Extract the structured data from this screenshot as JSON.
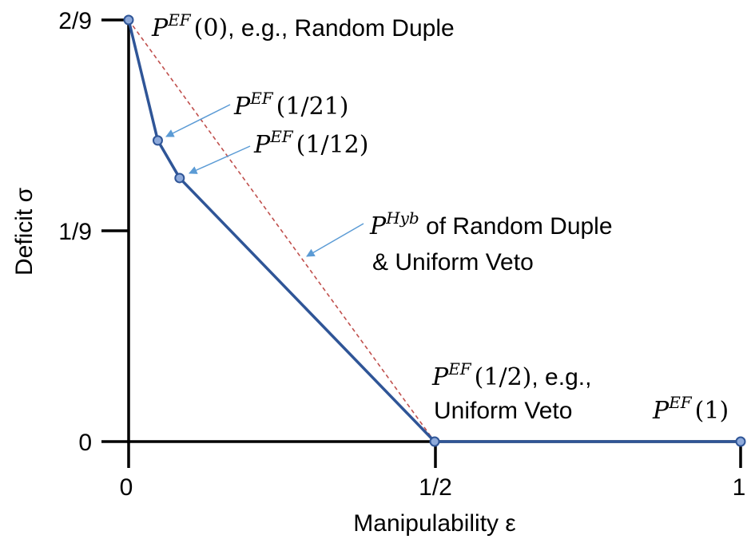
{
  "chart_data": {
    "type": "line",
    "xlabel": "Manipulability ε",
    "ylabel": "Deficit σ",
    "x_ticks": [
      "0",
      "1/2",
      "1"
    ],
    "y_ticks": [
      "0",
      "1/9",
      "2/9"
    ],
    "xlim": [
      0,
      1
    ],
    "ylim": [
      0,
      0.2222
    ],
    "grid": false,
    "series": [
      {
        "values": [
          {
            "x": 0.0,
            "y": 0.2222
          },
          {
            "x": 0.0476,
            "y": 0.1587
          },
          {
            "x": 0.0833,
            "y": 0.1389
          },
          {
            "x": 0.5,
            "y": 0.0
          },
          {
            "x": 1.0,
            "y": 0.0
          }
        ],
        "color": "#2f5597",
        "style": "solid"
      },
      {
        "values": [
          {
            "x": 0.0,
            "y": 0.2222
          },
          {
            "x": 0.5,
            "y": 0.0
          }
        ],
        "color": "#c0504d",
        "style": "dashed"
      }
    ],
    "annotations": {
      "p0": {
        "base": "P",
        "sup": "EF",
        "arg": "(0)",
        "rest": ", e.g., Random Duple"
      },
      "p21": {
        "base": "P",
        "sup": "EF",
        "arg": "(1/21)"
      },
      "p12": {
        "base": "P",
        "sup": "EF",
        "arg": "(1/12)"
      },
      "phyb": {
        "base": "P",
        "sup": "Hyb",
        "rest": " of Random Duple",
        "line2": "& Uniform Veto"
      },
      "phalf": {
        "base": "P",
        "sup": "EF",
        "arg": "(1/2)",
        "rest": ", e.g.,",
        "line2": "Uniform Veto"
      },
      "p1": {
        "base": "P",
        "sup": "EF",
        "arg": "(1)"
      }
    }
  },
  "colors": {
    "line": "#2f5597",
    "marker_fill": "#8eaadb",
    "hybrid": "#c0504d",
    "arrow": "#5b9bd5"
  }
}
